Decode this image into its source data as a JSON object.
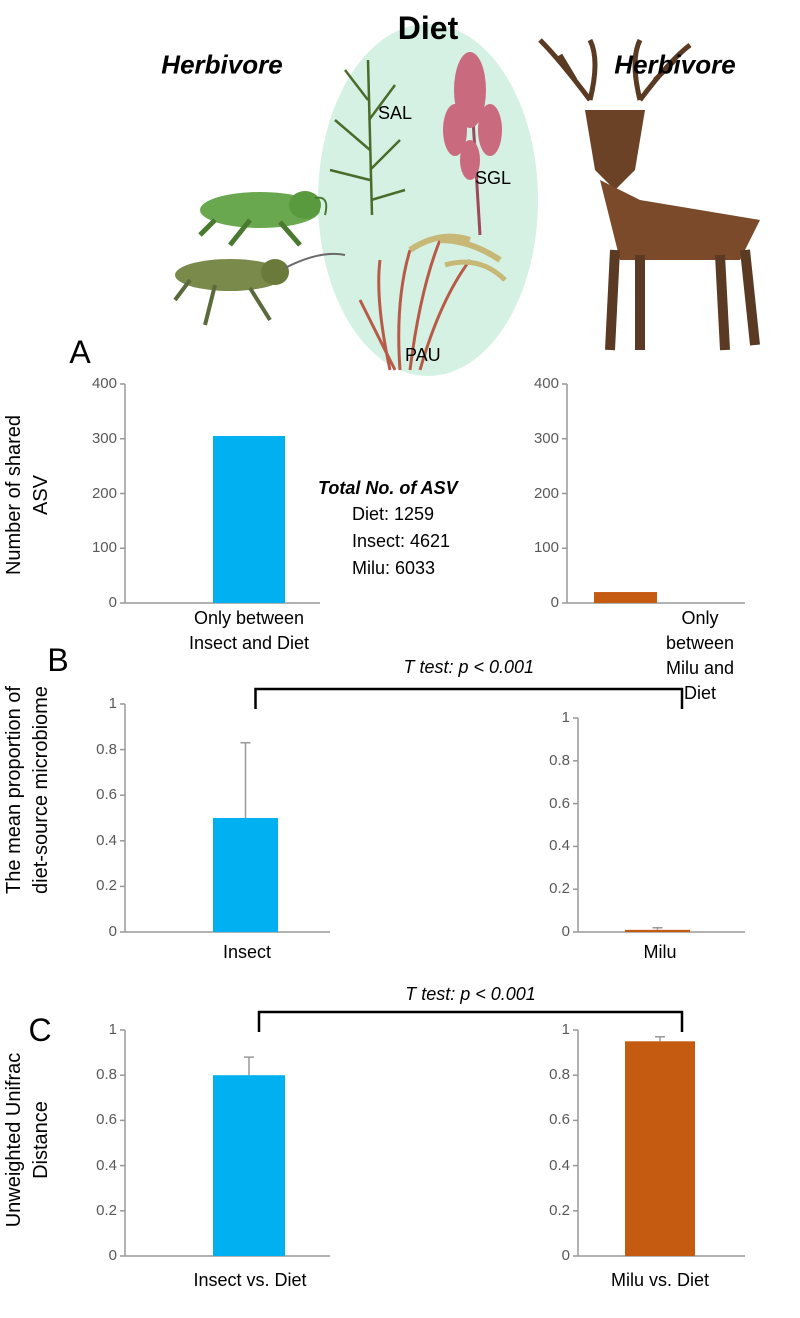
{
  "illustration": {
    "title": "Diet",
    "consumers": [
      "Herbivore",
      "Herbivore"
    ],
    "plants": [
      "SAL",
      "SGL",
      "PAU"
    ]
  },
  "chart_data": [
    {
      "type": "bar",
      "panel": "A",
      "ylabel": "Number of shared\nASV",
      "categories": [
        "Only between\nInsect and Diet"
      ],
      "values": [
        305
      ],
      "color": "#00b0f0",
      "ylim": [
        0,
        400
      ],
      "yticks": [
        0,
        100,
        200,
        300,
        400
      ],
      "annotation": {
        "title": "Total No. of ASV",
        "lines": [
          "Diet: 1259",
          "Insect: 4621",
          "Milu: 6033"
        ]
      }
    },
    {
      "type": "bar",
      "categories": [
        "Only between\nMilu and Diet"
      ],
      "values": [
        20
      ],
      "color": "#c55a11",
      "ylim": [
        0,
        400
      ],
      "yticks": [
        0,
        100,
        200,
        300,
        400
      ]
    },
    {
      "type": "bar",
      "panel": "B",
      "ylabel": "The mean proportion of\ndiet-source microbiome",
      "categories": [
        "Insect"
      ],
      "values": [
        0.5
      ],
      "errors": [
        0.33
      ],
      "color": "#00b0f0",
      "ylim": [
        0,
        1
      ],
      "yticks": [
        0,
        0.2,
        0.4,
        0.6,
        0.8,
        1
      ],
      "annotation": "T test: p < 0.001"
    },
    {
      "type": "bar",
      "categories": [
        "Milu"
      ],
      "values": [
        0.01
      ],
      "errors": [
        0.01
      ],
      "color": "#c55a11",
      "ylim": [
        0,
        1
      ],
      "yticks": [
        0,
        0.2,
        0.4,
        0.6,
        0.8,
        1
      ]
    },
    {
      "type": "bar",
      "panel": "C",
      "ylabel": "Unweighted Unifrac\nDistance",
      "categories": [
        "Insect vs. Diet"
      ],
      "values": [
        0.8
      ],
      "errors": [
        0.08
      ],
      "color": "#00b0f0",
      "ylim": [
        0,
        1
      ],
      "yticks": [
        0,
        0.2,
        0.4,
        0.6,
        0.8,
        1
      ],
      "annotation": "T test: p < 0.001"
    },
    {
      "type": "bar",
      "categories": [
        "Milu vs. Diet"
      ],
      "values": [
        0.95
      ],
      "errors": [
        0.02
      ],
      "color": "#c55a11",
      "ylim": [
        0,
        1
      ],
      "yticks": [
        0,
        0.2,
        0.4,
        0.6,
        0.8,
        1
      ]
    }
  ]
}
